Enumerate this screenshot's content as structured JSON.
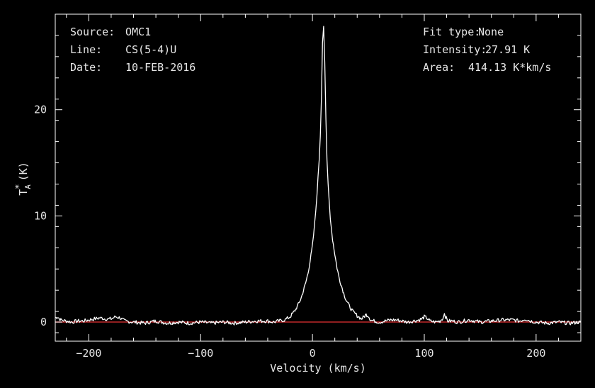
{
  "info_left": [
    {
      "key": "Source:",
      "value": "OMC1"
    },
    {
      "key": "Line:",
      "value": "CS(5-4)U"
    },
    {
      "key": "Date:",
      "value": "10-FEB-2016"
    }
  ],
  "info_right": [
    {
      "key": "Fit type:",
      "value": "None"
    },
    {
      "key": "Intensity:",
      "value": "27.91 K"
    },
    {
      "key": "Area:",
      "value": "414.13 K*km/s"
    }
  ],
  "colors": {
    "background": "#000000",
    "frame": "#ffffff",
    "spectrum": "#ffffff",
    "baseline": "#c0282a"
  },
  "chart_data": {
    "type": "line",
    "xlabel": "Velocity (km/s)",
    "ylabel": "T_A^* (K)",
    "xlim": [
      -230,
      240
    ],
    "ylim": [
      -1.8,
      29
    ],
    "x_ticks": [
      -200,
      -100,
      0,
      100,
      200
    ],
    "x_tick_labels": [
      "−200",
      "−100",
      "0",
      "100",
      "200"
    ],
    "y_ticks": [
      0,
      10,
      20
    ],
    "y_tick_labels": [
      "0",
      "10",
      "20"
    ],
    "baseline_value": 0,
    "grid": false,
    "series": [
      {
        "x": [
          -230,
          -228,
          -225,
          -220,
          -215,
          -210,
          -205,
          -200,
          -195,
          -190,
          -185,
          -180,
          -176,
          -172,
          -168,
          -160,
          -150,
          -140,
          -130,
          -120,
          -110,
          -100,
          -90,
          -80,
          -70,
          -60,
          -50,
          -40,
          -35,
          -30,
          -25,
          -20,
          -17,
          -15,
          -12,
          -10,
          -8,
          -6,
          -4,
          -2,
          0,
          1,
          2,
          3,
          4,
          5,
          6,
          7,
          8,
          9,
          10,
          11,
          12,
          13,
          14,
          15,
          16,
          17,
          18,
          20,
          22,
          24,
          26,
          28,
          30,
          33,
          36,
          40,
          44,
          46,
          48,
          50,
          52,
          55,
          60,
          65,
          70,
          75,
          80,
          85,
          90,
          95,
          98,
          100,
          102,
          105,
          110,
          114,
          117,
          118,
          119,
          121,
          125,
          130,
          135,
          140,
          150,
          160,
          170,
          180,
          185,
          188,
          190,
          195,
          200,
          210,
          220,
          230,
          240
        ],
        "y": [
          0.4,
          0.5,
          0.2,
          0.1,
          0.0,
          0.1,
          0.1,
          0.2,
          0.3,
          0.4,
          0.3,
          0.3,
          0.5,
          0.4,
          0.1,
          0.0,
          -0.1,
          0.1,
          -0.1,
          0.0,
          -0.1,
          0.0,
          -0.1,
          0.0,
          -0.1,
          0.0,
          0.1,
          0.1,
          0.0,
          0.1,
          0.2,
          0.5,
          0.9,
          1.2,
          1.8,
          2.3,
          3.0,
          3.7,
          4.6,
          5.8,
          7.2,
          8.2,
          9.3,
          10.5,
          12.0,
          13.6,
          15.3,
          17.6,
          21.0,
          26.5,
          27.9,
          24.5,
          19.0,
          15.2,
          13.0,
          11.3,
          9.8,
          8.8,
          7.8,
          6.4,
          5.1,
          4.1,
          3.4,
          2.7,
          2.1,
          1.5,
          1.0,
          0.6,
          0.3,
          0.5,
          0.7,
          0.6,
          0.2,
          0.1,
          0.0,
          0.1,
          0.2,
          0.2,
          0.1,
          0.0,
          0.1,
          0.2,
          0.3,
          0.5,
          0.4,
          0.1,
          0.0,
          0.1,
          0.4,
          0.9,
          0.5,
          0.1,
          0.1,
          0.0,
          0.1,
          0.2,
          0.0,
          0.1,
          0.2,
          0.2,
          0.1,
          0.2,
          0.3,
          0.1,
          0.0,
          -0.1,
          0.0,
          -0.1,
          0.0
        ]
      }
    ]
  }
}
